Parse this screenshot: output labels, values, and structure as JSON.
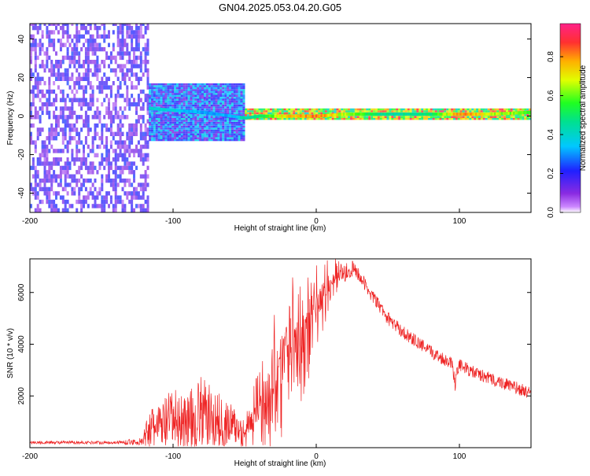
{
  "title": "GN04.2025.053.04.20.G05",
  "colors": {
    "snr_line": "#ee2222",
    "spectrogram_ridge": "#ff2266",
    "noise_purple": "#7b2cf0",
    "axes": "#000000"
  },
  "colorbar": {
    "label": "Normalized spectral amplitude",
    "ticks": [
      "0.0",
      "0.2",
      "0.4",
      "0.6",
      "0.8"
    ],
    "range": [
      0,
      0.97
    ]
  },
  "chart_data": [
    {
      "type": "heatmap",
      "xlabel": "Height of straight line (km)",
      "ylabel": "Frequency (Hz)",
      "xlim": [
        -200,
        150
      ],
      "ylim": [
        -50,
        48
      ],
      "xticks": [
        "-200",
        "-100",
        "0",
        "100"
      ],
      "yticks": [
        "-40",
        "-20",
        "0",
        "20",
        "40"
      ],
      "grid": false,
      "colormap": "rainbow (purple=low, red=high)",
      "regions": [
        {
          "x_range": [
            -200,
            -117
          ],
          "freq_range": [
            -50,
            48
          ],
          "amplitude": [
            0.05,
            0.25
          ],
          "description_value": "broadband noise"
        },
        {
          "x_range": [
            -117,
            -50
          ],
          "freq_center": 2,
          "freq_halfwidth": 15,
          "amplitude": [
            0.1,
            0.4
          ]
        },
        {
          "x_range": [
            -50,
            150
          ],
          "freq_center": 1,
          "freq_halfwidth": 3,
          "amplitude": [
            0.4,
            0.95
          ]
        }
      ],
      "ridge": {
        "x": [
          -117,
          -100,
          -80,
          -60,
          -50,
          -40,
          -20,
          0,
          20,
          50,
          80,
          100,
          120,
          150
        ],
        "freq": [
          4,
          3,
          2,
          0,
          -1,
          0,
          0,
          0,
          1,
          1,
          1,
          1,
          1,
          2
        ],
        "amplitude": [
          0.45,
          0.4,
          0.35,
          0.35,
          0.5,
          0.55,
          0.85,
          0.9,
          0.7,
          0.5,
          0.55,
          0.9,
          0.75,
          0.65
        ]
      }
    },
    {
      "type": "line",
      "xlabel": "Height of straight line (km)",
      "ylabel": "SNR (10 * v/v)",
      "xlim": [
        -200,
        150
      ],
      "ylim": [
        0,
        7300
      ],
      "xticks": [
        "-200",
        "-100",
        "0",
        "100"
      ],
      "yticks": [
        "2000",
        "4000",
        "6000"
      ],
      "grid": false,
      "series": [
        {
          "x": [
            -200,
            -180,
            -160,
            -140,
            -121,
            -118,
            -110,
            -100,
            -90,
            -80,
            -70,
            -60,
            -55,
            -50,
            -45,
            -40,
            -35,
            -30,
            -25,
            -20,
            -15,
            -10,
            -5,
            0,
            5,
            10,
            15,
            20,
            25,
            30,
            35,
            40,
            45,
            50,
            60,
            70,
            80,
            90,
            95,
            97,
            98,
            100,
            110,
            120,
            130,
            140,
            150
          ],
          "y": [
            200,
            200,
            200,
            200,
            230,
            700,
            800,
            1100,
            1000,
            1400,
            1000,
            900,
            700,
            600,
            1000,
            1600,
            2100,
            2600,
            3300,
            4000,
            4000,
            4300,
            4800,
            5400,
            6000,
            6400,
            6700,
            6800,
            6900,
            6700,
            6200,
            5800,
            5400,
            5000,
            4500,
            4100,
            3700,
            3400,
            3300,
            2400,
            3000,
            3200,
            2900,
            2700,
            2500,
            2300,
            2100
          ],
          "spread": [
            60,
            60,
            60,
            60,
            150,
            700,
            900,
            1200,
            1100,
            1400,
            1200,
            900,
            700,
            600,
            1200,
            1800,
            2400,
            2700,
            3000,
            3000,
            2800,
            2500,
            2200,
            1800,
            1400,
            900,
            600,
            400,
            350,
            300,
            250,
            250,
            250,
            250,
            250,
            250,
            250,
            250,
            250,
            250,
            250,
            250,
            250,
            250,
            250,
            250,
            250
          ]
        }
      ]
    }
  ]
}
